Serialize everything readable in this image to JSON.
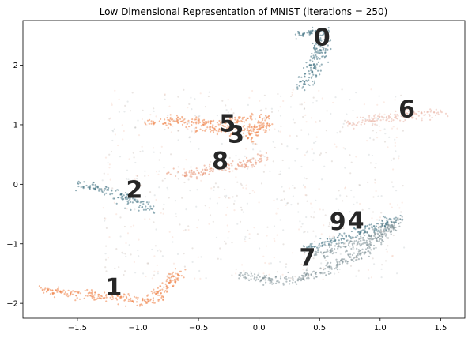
{
  "chart_data": {
    "type": "scatter",
    "title": "Low Dimensional Representation of MNIST (iterations = 250)",
    "xlabel": "",
    "ylabel": "",
    "xlim": [
      -1.95,
      1.7
    ],
    "ylim": [
      -2.25,
      2.75
    ],
    "x_ticks": [
      -1.5,
      -1.0,
      -0.5,
      0.0,
      0.5,
      1.0,
      1.5
    ],
    "x_tick_labels": [
      "−1.5",
      "−1.0",
      "−0.5",
      "0.0",
      "0.5",
      "1.0",
      "1.5"
    ],
    "y_ticks": [
      -2,
      -1,
      0,
      1,
      2
    ],
    "y_tick_labels": [
      "−2",
      "−1",
      "0",
      "1",
      "2"
    ],
    "grid": false,
    "colors": {
      "teal": "#3f7182",
      "orange": "#ee8147",
      "salmon": "#e79677",
      "light_salmon": "#eab5a5",
      "gray": "#7d8f96",
      "brown": "#8d6e5e"
    },
    "clusters": [
      {
        "label": "0",
        "color": "teal",
        "label_x": 0.52,
        "label_y": 2.48,
        "path": [
          [
            0.32,
            2.5
          ],
          [
            0.42,
            2.58
          ],
          [
            0.55,
            2.5
          ],
          [
            0.5,
            2.2
          ],
          [
            0.45,
            2.0
          ],
          [
            0.4,
            1.8
          ],
          [
            0.35,
            1.65
          ]
        ]
      },
      {
        "label": "1",
        "color": "orange",
        "label_x": -1.2,
        "label_y": -1.72,
        "path": [
          [
            -1.8,
            -1.75
          ],
          [
            -1.6,
            -1.82
          ],
          [
            -1.4,
            -1.85
          ],
          [
            -1.2,
            -1.9
          ],
          [
            -1.05,
            -1.95
          ],
          [
            -0.95,
            -1.97
          ],
          [
            -0.85,
            -1.9
          ],
          [
            -0.78,
            -1.75
          ],
          [
            -0.72,
            -1.6
          ],
          [
            -0.65,
            -1.45
          ]
        ]
      },
      {
        "label": "2",
        "color": "teal",
        "label_x": -1.03,
        "label_y": -0.08,
        "path": [
          [
            -1.48,
            -0.02
          ],
          [
            -1.35,
            -0.05
          ],
          [
            -1.2,
            -0.15
          ],
          [
            -1.08,
            -0.25
          ],
          [
            -0.98,
            -0.35
          ],
          [
            -0.9,
            -0.42
          ]
        ]
      },
      {
        "label": "3",
        "color": "orange",
        "label_x": -0.19,
        "label_y": 0.85,
        "path": [
          [
            -0.5,
            0.95
          ],
          [
            -0.35,
            0.92
          ],
          [
            -0.2,
            0.9
          ],
          [
            -0.05,
            0.95
          ],
          [
            0.05,
            1.0
          ],
          [
            -0.1,
            0.75
          ]
        ]
      },
      {
        "label": "5",
        "color": "orange",
        "label_x": -0.26,
        "label_y": 1.03,
        "path": [
          [
            -0.9,
            1.03
          ],
          [
            -0.7,
            1.05
          ],
          [
            -0.5,
            1.05
          ],
          [
            -0.35,
            1.02
          ],
          [
            -0.15,
            1.1
          ],
          [
            0.05,
            1.1
          ]
        ]
      },
      {
        "label": "6",
        "color": "light_salmon",
        "label_x": 1.22,
        "label_y": 1.27,
        "path": [
          [
            0.75,
            1.0
          ],
          [
            0.9,
            1.06
          ],
          [
            1.05,
            1.12
          ],
          [
            1.2,
            1.15
          ],
          [
            1.35,
            1.18
          ],
          [
            1.5,
            1.2
          ]
        ]
      },
      {
        "label": "7",
        "color": "gray",
        "label_x": 0.4,
        "label_y": -1.22,
        "path": [
          [
            -0.15,
            -1.5
          ],
          [
            0.05,
            -1.6
          ],
          [
            0.3,
            -1.6
          ],
          [
            0.55,
            -1.45
          ],
          [
            0.8,
            -1.2
          ],
          [
            1.0,
            -0.9
          ],
          [
            1.15,
            -0.6
          ]
        ]
      },
      {
        "label": "8",
        "color": "salmon",
        "label_x": -0.32,
        "label_y": 0.4,
        "path": [
          [
            -0.7,
            0.15
          ],
          [
            -0.5,
            0.2
          ],
          [
            -0.3,
            0.28
          ],
          [
            -0.1,
            0.35
          ],
          [
            0.05,
            0.45
          ]
        ]
      },
      {
        "label": "9",
        "color": "teal",
        "label_x": 0.65,
        "label_y": -0.62,
        "path": [
          [
            0.4,
            -1.1
          ],
          [
            0.6,
            -0.95
          ],
          [
            0.8,
            -0.82
          ],
          [
            1.0,
            -0.7
          ],
          [
            1.15,
            -0.55
          ]
        ]
      },
      {
        "label": "4",
        "color": "gray",
        "label_x": 0.8,
        "label_y": -0.6,
        "path": [
          [
            0.45,
            -1.2
          ],
          [
            0.7,
            -1.05
          ],
          [
            0.95,
            -0.85
          ],
          [
            1.15,
            -0.65
          ]
        ]
      }
    ]
  }
}
